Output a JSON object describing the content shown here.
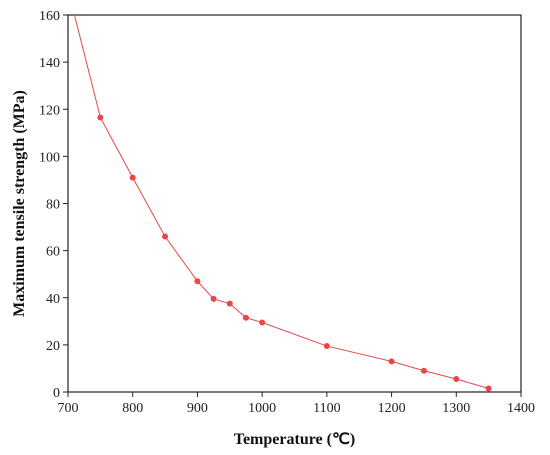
{
  "chart_data": {
    "type": "line",
    "title": "",
    "xlabel": "Temperature (℃)",
    "ylabel": "Maximum tensile strength (MPa)",
    "xlim": [
      700,
      1400
    ],
    "ylim": [
      0,
      160
    ],
    "xticks": [
      700,
      800,
      900,
      1000,
      1100,
      1200,
      1300,
      1400
    ],
    "yticks": [
      0,
      20,
      40,
      60,
      80,
      100,
      120,
      140,
      160
    ],
    "grid": false,
    "legend": "none",
    "line_start": [
      710,
      160
    ],
    "series": [
      {
        "color": "#e8474a",
        "x": [
          750,
          800,
          850,
          900,
          925,
          950,
          975,
          1000,
          1100,
          1200,
          1250,
          1300,
          1350
        ],
        "y": [
          116.5,
          91,
          66,
          47,
          39.5,
          37.5,
          31.5,
          29.5,
          19.5,
          13,
          9,
          5.5,
          1.5
        ]
      }
    ]
  }
}
